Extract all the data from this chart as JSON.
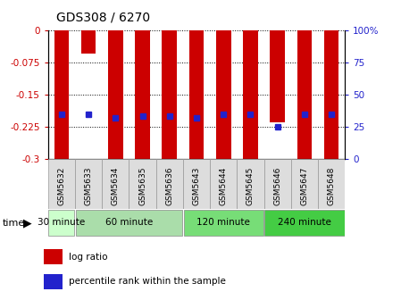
{
  "title": "GDS308 / 6270",
  "samples": [
    "GSM5632",
    "GSM5633",
    "GSM5634",
    "GSM5635",
    "GSM5636",
    "GSM5643",
    "GSM5644",
    "GSM5645",
    "GSM5646",
    "GSM5647",
    "GSM5648"
  ],
  "log_ratios": [
    -0.3,
    -0.055,
    -0.3,
    -0.3,
    -0.3,
    -0.3,
    -0.3,
    -0.3,
    -0.215,
    -0.3,
    -0.3
  ],
  "percentile_ranks_y": [
    -0.195,
    -0.195,
    -0.205,
    -0.2,
    -0.2,
    -0.205,
    -0.195,
    -0.195,
    -0.225,
    -0.195,
    -0.195
  ],
  "bar_color": "#cc0000",
  "marker_color": "#2222cc",
  "ylim": [
    -0.3,
    0.0
  ],
  "yticks_left": [
    0,
    -0.075,
    -0.15,
    -0.225,
    -0.3
  ],
  "yticks_left_labels": [
    "0",
    "-0.075",
    "-0.15",
    "-0.225",
    "-0.3"
  ],
  "yticks_right_positions": [
    0.0,
    -0.075,
    -0.15,
    -0.225,
    -0.3
  ],
  "yticks_right_labels": [
    "100%",
    "75",
    "50",
    "25",
    "0"
  ],
  "bar_width": 0.55,
  "background_color": "#ffffff",
  "group_defs": [
    {
      "label": "30 minute",
      "start": 0,
      "end": 0,
      "color": "#ccffcc"
    },
    {
      "label": "60 minute",
      "start": 1,
      "end": 4,
      "color": "#aaddaa"
    },
    {
      "label": "120 minute",
      "start": 5,
      "end": 7,
      "color": "#77dd77"
    },
    {
      "label": "240 minute",
      "start": 8,
      "end": 10,
      "color": "#44cc44"
    }
  ],
  "tick_color_left": "#cc0000",
  "tick_color_right": "#2222cc",
  "legend_entries": [
    "log ratio",
    "percentile rank within the sample"
  ]
}
